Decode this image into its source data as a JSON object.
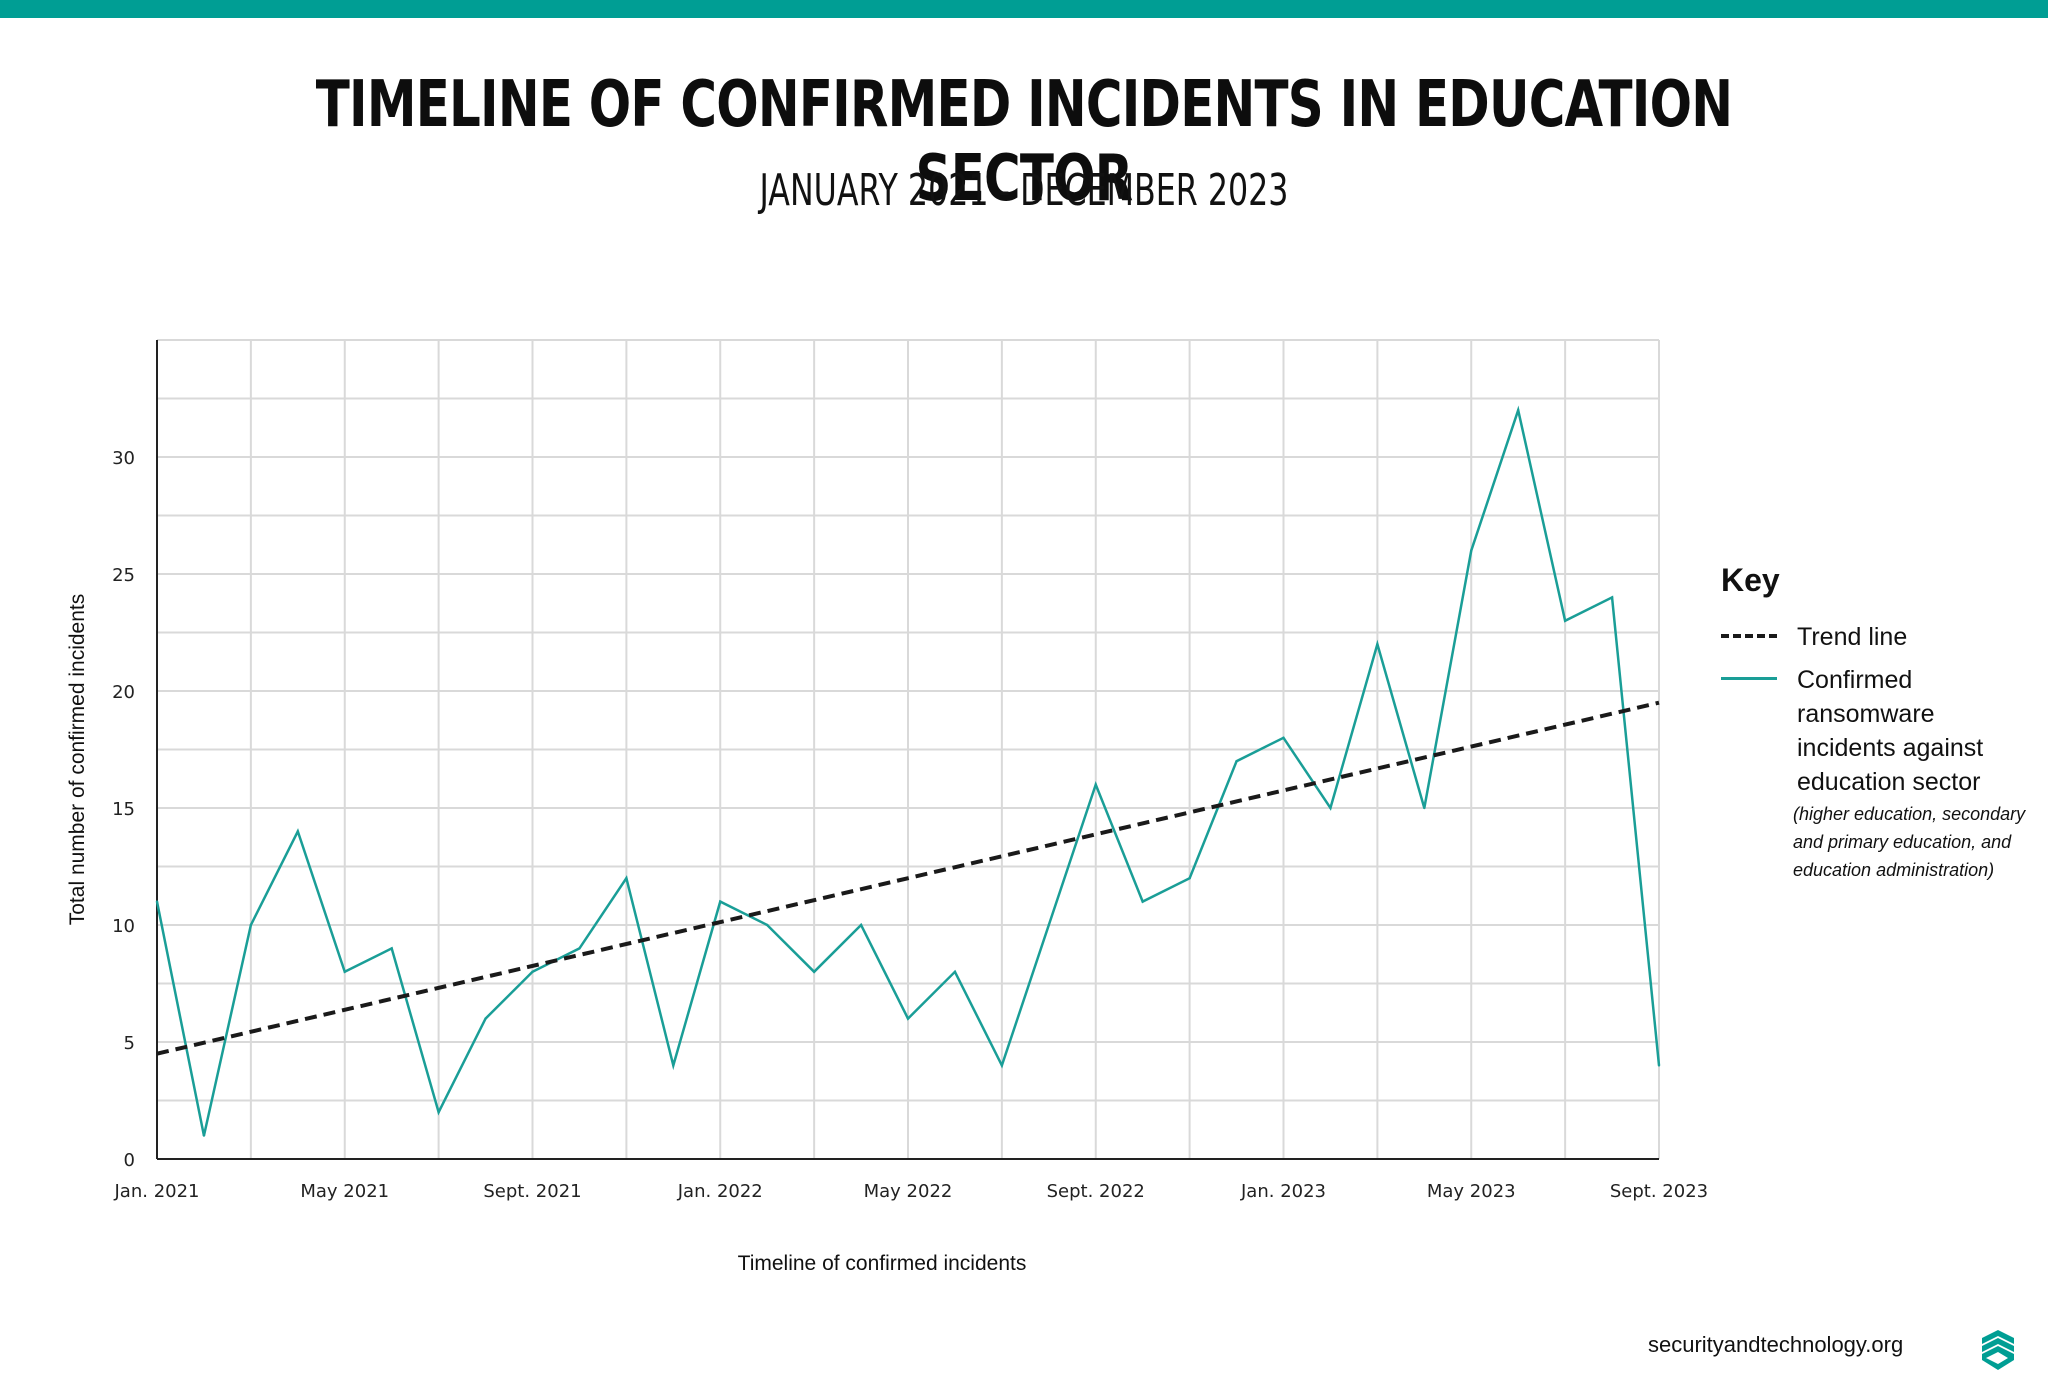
{
  "header": {
    "title": "TIMELINE OF CONFIRMED INCIDENTS IN EDUCATION SECTOR",
    "subtitle": "JANUARY 2021 - DECEMBER 2023"
  },
  "chart_data": {
    "type": "line",
    "title": "TIMELINE OF CONFIRMED INCIDENTS IN EDUCATION SECTOR",
    "subtitle": "JANUARY 2021 - DECEMBER 2023",
    "xlabel": "Timeline of confirmed incidents",
    "ylabel": "Total number of confirmed incidents",
    "x_tick_labels": [
      "Jan. 2021",
      "May 2021",
      "Sept. 2021",
      "Jan. 2022",
      "May 2022",
      "Sept. 2022",
      "Jan. 2023",
      "May 2023",
      "Sept. 2023"
    ],
    "x_tick_month_index": [
      0,
      4,
      8,
      12,
      16,
      20,
      24,
      28,
      32
    ],
    "y_ticks": [
      0,
      5,
      10,
      15,
      20,
      25,
      30
    ],
    "ylim": [
      0,
      35
    ],
    "xlim": [
      0,
      32
    ],
    "grid": true,
    "series": [
      {
        "name": "Confirmed ransomware incidents against education sector",
        "color": "#1a9e97",
        "style": "solid",
        "values": [
          11,
          1,
          10,
          14,
          8,
          9,
          2,
          6,
          8,
          9,
          12,
          4,
          11,
          10,
          8,
          10,
          6,
          8,
          4,
          10,
          16,
          11,
          12,
          17,
          18,
          15,
          22,
          15,
          26,
          32,
          23,
          24,
          4
        ]
      },
      {
        "name": "Trend line",
        "color": "#1a1a1a",
        "style": "dashed",
        "start": [
          0,
          4.5
        ],
        "end": [
          32,
          19.5
        ]
      }
    ]
  },
  "legend": {
    "title": "Key",
    "trend_label": "Trend line",
    "series_label": "Confirmed ransomware incidents against education sector",
    "series_note": "(higher education, secondary and primary education, and education administration)"
  },
  "footer": {
    "url": "securityandtechnology.org",
    "logo_icon": "shield-logo-icon"
  }
}
